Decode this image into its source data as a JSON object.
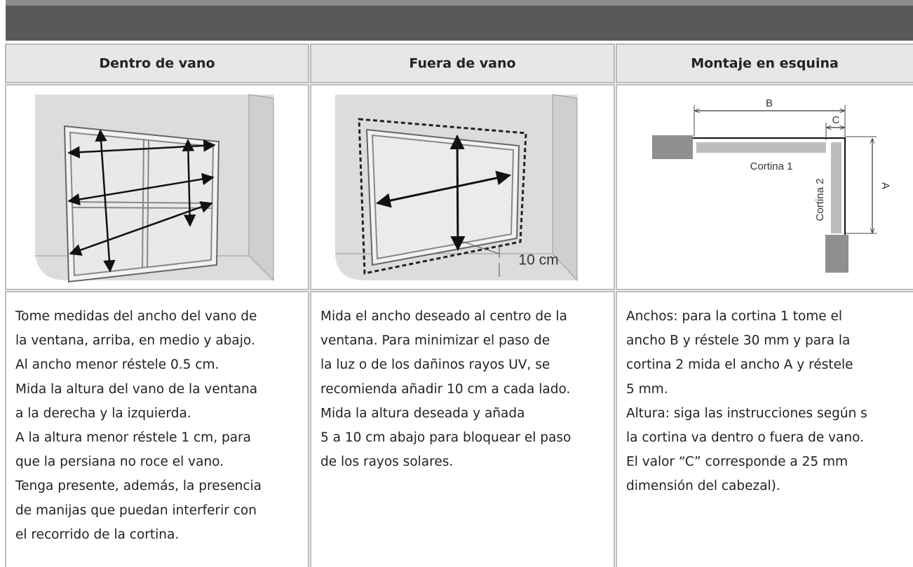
{
  "columns": [
    {
      "heading": "Dentro de vano",
      "lines": [
        "Tome medidas del ancho del vano de",
        "la ventana, arriba, en medio y abajo.",
        "Al ancho menor réstele 0.5 cm.",
        "Mida la altura del vano de la ventana",
        "a la derecha y la izquierda.",
        "A la altura menor réstele 1 cm, para",
        "que la persiana no roce el vano.",
        "Tenga presente, además, la presencia",
        "de manijas que puedan interferir con",
        "el recorrido de la cortina."
      ]
    },
    {
      "heading": "Fuera de vano",
      "diagram": {
        "label": "10 cm"
      },
      "lines": [
        "Mida el ancho deseado al centro de la",
        "ventana. Para minimizar  el paso de",
        "la luz o de los dañinos rayos UV, se",
        "recomienda añadir 10 cm a cada lado.",
        "Mida la altura deseada y añada",
        "5 a 10 cm abajo para bloquear el paso",
        "de los rayos solares."
      ]
    },
    {
      "heading": "Montaje en esquina",
      "diagram": {
        "labels": [
          "B",
          "C",
          "Cortina 1",
          "Cortina 2",
          "A"
        ]
      },
      "lines": [
        "Anchos: para la cortina 1 tome el",
        "ancho B y réstele 30 mm y para la",
        "cortina 2 mida el ancho A y réstele",
        "5 mm.",
        "Altura: siga las instrucciones según s",
        "la cortina va dentro o fuera de vano.",
        "El valor “C” corresponde a 25 mm",
        "dimensión del cabezal)."
      ]
    }
  ]
}
